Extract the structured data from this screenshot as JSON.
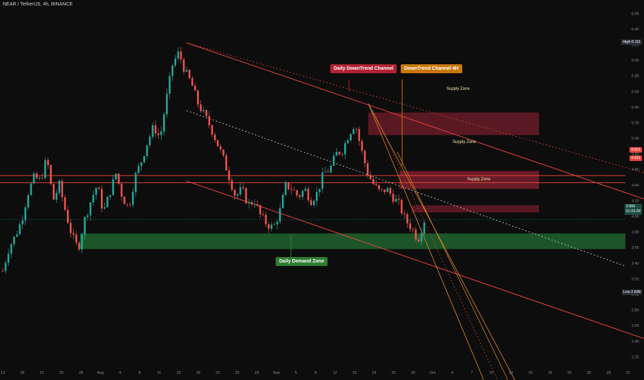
{
  "header": {
    "symbol": "NEAR / TetherUS, 4h, BINANCE"
  },
  "annotations": {
    "daily_downtrend": "Daily DownTrend Channel",
    "downtrend_4h": "DownTrend Channel 4H",
    "daily_demand": "Daily Demand Zone",
    "supply_1": "Supply Zone",
    "supply_2": "Supply Zone",
    "supply_3": "Supply Zone"
  },
  "price_tags": {
    "high_label": "High",
    "high_value": "6.111",
    "tag_a": "4.521",
    "tag_b": "4.431",
    "current": "3.956",
    "countdown": "01:03:28",
    "low_label": "Low",
    "low_value": "2.838"
  },
  "colors": {
    "background": "#0d0d0d",
    "up": "#26a69a",
    "down": "#ef5350",
    "demand_zone": "#1e5b2a",
    "supply_zone": "#7a1f2d",
    "trend_line": "#e8453c",
    "orange_line": "#d9822b",
    "callout_red": "#b22234",
    "callout_orange": "#c9760c",
    "callout_green": "#2e7d32"
  },
  "chart_data": {
    "type": "candlestick",
    "symbol": "NEAR / TetherUS",
    "timeframe": "4h",
    "exchange": "BINANCE",
    "y_axis_ticks": [
      6.6,
      6.4,
      6.2,
      6.0,
      5.8,
      5.6,
      5.4,
      5.2,
      5.0,
      4.8,
      4.6,
      4.4,
      4.2,
      4.0,
      3.8,
      3.6,
      3.4,
      3.2,
      3.0,
      2.8,
      2.6,
      2.4,
      2.2
    ],
    "y_axis_labels": [
      "6.60",
      "6.40",
      "6.20",
      "6.00",
      "5.80",
      "5.60",
      "5.40",
      "5.20",
      "5.00",
      "4.80",
      "4.60",
      "4.40",
      "4.20",
      "4.00",
      "3.80",
      "3.60",
      "3.40",
      "3.20",
      "3.00",
      "2.80",
      "2.60",
      "2.40",
      "2.20"
    ],
    "ylim": [
      2.15,
      6.7
    ],
    "x_axis_labels": [
      "13",
      "18",
      "21",
      "25",
      "28",
      "Aug",
      "4",
      "8",
      "11",
      "15",
      "18",
      "22",
      "25",
      "29",
      "Sep",
      "5",
      "8",
      "12",
      "15",
      "19",
      "22",
      "26",
      "Oct",
      "4",
      "7",
      "10",
      "13",
      "16",
      "19",
      "22",
      "25",
      "28",
      "31"
    ],
    "close_path": [
      3.3,
      3.6,
      3.75,
      3.95,
      4.3,
      4.5,
      4.45,
      4.75,
      4.2,
      4.4,
      4.05,
      3.75,
      3.58,
      3.95,
      4.2,
      4.4,
      4.05,
      4.3,
      4.55,
      4.25,
      4.1,
      4.5,
      4.7,
      4.95,
      5.15,
      5.0,
      5.5,
      5.95,
      6.1,
      5.85,
      5.7,
      5.45,
      5.3,
      5.15,
      4.95,
      4.75,
      4.5,
      4.25,
      4.35,
      4.15,
      4.2,
      4.0,
      3.9,
      3.85,
      4.05,
      4.4,
      4.35,
      4.25,
      4.35,
      4.2,
      4.3,
      4.55,
      4.6,
      4.8,
      4.85,
      5.05,
      5.2,
      4.85,
      4.55,
      4.4,
      4.3,
      4.35,
      4.25,
      4.15,
      3.95,
      3.85,
      3.7,
      3.95
    ],
    "high": 6.111,
    "low": 2.838,
    "current_price": 3.956,
    "horizontal_levels": [
      4.521,
      4.431
    ],
    "zones": [
      {
        "type": "demand",
        "label": "Daily Demand Zone",
        "from": 3.58,
        "to": 3.78
      },
      {
        "type": "supply",
        "label": "Supply Zone",
        "from": 5.04,
        "to": 5.33
      },
      {
        "type": "supply",
        "label": "Supply Zone",
        "from": 4.35,
        "to": 4.58
      },
      {
        "type": "supply",
        "label": "Supply Zone",
        "from": 4.05,
        "to": 4.14
      }
    ]
  }
}
